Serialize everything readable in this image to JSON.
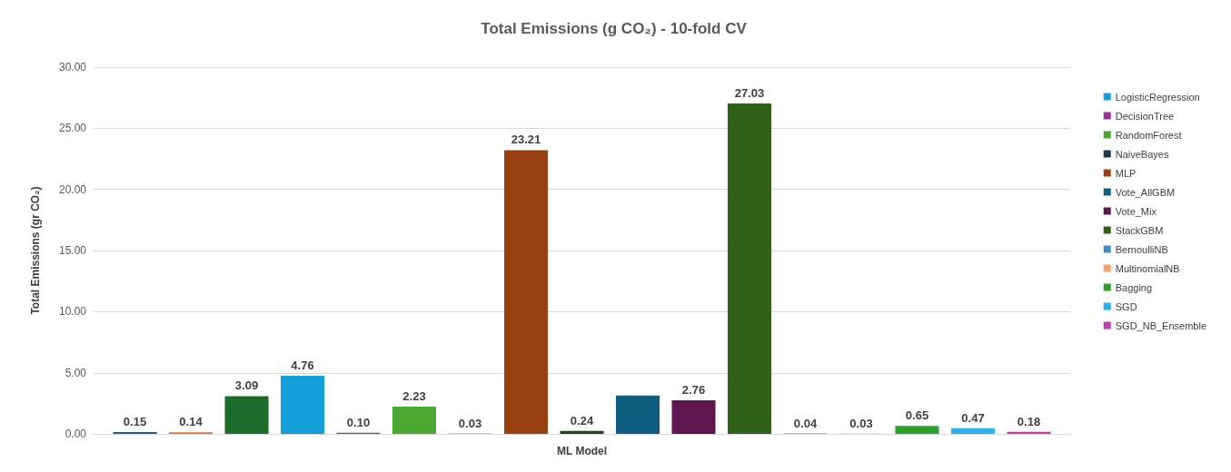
{
  "chart_data": {
    "type": "bar",
    "title": "Total Emissions (g CO₂) - 10-fold CV",
    "xlabel": "ML Model",
    "ylabel": "Total Emissions (gr CO₂)",
    "categories": [
      null
    ],
    "series": [
      {
        "color": "#1f5c8b",
        "values": [
          0.15
        ],
        "value_labels": [
          "0.15"
        ]
      },
      {
        "color": "#e9712b",
        "values": [
          0.14
        ],
        "value_labels": [
          "0.14"
        ]
      },
      {
        "color": "#1b6b2b",
        "values": [
          3.09
        ],
        "value_labels": [
          "3.09"
        ]
      },
      {
        "name": "LogisticRegression",
        "color": "#149fd8",
        "values": [
          4.76
        ],
        "value_labels": [
          "4.76"
        ]
      },
      {
        "name": "DecisionTree",
        "color": "#9b2f9b",
        "values": [
          0.1
        ],
        "value_labels": [
          "0.10"
        ]
      },
      {
        "name": "RandomForest",
        "color": "#4aa832",
        "values": [
          2.23
        ],
        "value_labels": [
          "2.23"
        ]
      },
      {
        "name": "NaiveBayes",
        "color": "#1c3a4e",
        "values": [
          0.03
        ],
        "value_labels": [
          "0.03"
        ]
      },
      {
        "name": "MLP",
        "color": "#98400f",
        "values": [
          23.21
        ],
        "value_labels": [
          "23.21"
        ]
      },
      {
        "color": "#1a4a1a",
        "values": [
          0.24
        ],
        "value_labels": [
          "0.24"
        ]
      },
      {
        "name": "Vote_AllGBM",
        "color": "#0f5e80",
        "values": [
          3.15
        ],
        "value_labels": [
          null
        ]
      },
      {
        "name": "Vote_Mix",
        "color": "#5e1650",
        "values": [
          2.76
        ],
        "value_labels": [
          "2.76"
        ]
      },
      {
        "name": "StackGBM",
        "color": "#2f6119",
        "values": [
          27.03
        ],
        "value_labels": [
          "27.03"
        ]
      },
      {
        "name": "BernoulliNB",
        "color": "#3a8fc4",
        "values": [
          0.04
        ],
        "value_labels": [
          "0.04"
        ]
      },
      {
        "name": "MultinomialNB",
        "color": "#f0a070",
        "values": [
          0.03
        ],
        "value_labels": [
          "0.03"
        ]
      },
      {
        "name": "Bagging",
        "color": "#2ea02e",
        "values": [
          0.65
        ],
        "value_labels": [
          "0.65"
        ]
      },
      {
        "name": "SGD",
        "color": "#2bb0e8",
        "values": [
          0.47
        ],
        "value_labels": [
          "0.47"
        ]
      },
      {
        "name": "SGD_NB_Ensemble",
        "color": "#c03cb0",
        "values": [
          0.18
        ],
        "value_labels": [
          "0.18"
        ]
      }
    ],
    "ylim": [
      0,
      30
    ],
    "yticks": [
      {
        "value": 0,
        "label": "0.00"
      },
      {
        "value": 5,
        "label": "5.00"
      },
      {
        "value": 10,
        "label": "10.00"
      },
      {
        "value": 15,
        "label": "15.00"
      },
      {
        "value": 20,
        "label": "20.00"
      },
      {
        "value": 25,
        "label": "25.00"
      },
      {
        "value": 30,
        "label": "30.00"
      }
    ],
    "grid": "y",
    "legend": "right"
  }
}
